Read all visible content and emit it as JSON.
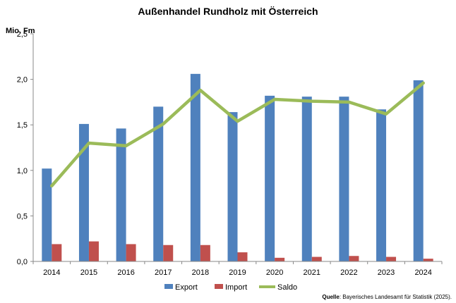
{
  "chart_data": {
    "type": "bar",
    "title": "Außenhandel Rundholz mit Österreich",
    "ylabel": "Mio. Fm",
    "xlabel": "",
    "categories": [
      "2014",
      "2015",
      "2016",
      "2017",
      "2018",
      "2019",
      "2020",
      "2021",
      "2022",
      "2023",
      "2024"
    ],
    "series": [
      {
        "name": "Export",
        "type": "bar",
        "color": "#4f81bd",
        "values": [
          1.02,
          1.51,
          1.46,
          1.7,
          2.06,
          1.64,
          1.82,
          1.81,
          1.81,
          1.67,
          1.99
        ]
      },
      {
        "name": "Import",
        "type": "bar",
        "color": "#c0504d",
        "values": [
          0.19,
          0.22,
          0.19,
          0.18,
          0.18,
          0.1,
          0.04,
          0.05,
          0.06,
          0.05,
          0.03
        ]
      },
      {
        "name": "Saldo",
        "type": "line",
        "color": "#9bbb59",
        "values": [
          0.83,
          1.3,
          1.27,
          1.51,
          1.88,
          1.54,
          1.78,
          1.76,
          1.75,
          1.62,
          1.96
        ]
      }
    ],
    "ylim": [
      0,
      2.5
    ],
    "yticks": [
      "0,0",
      "0,5",
      "1,0",
      "1,5",
      "2,0",
      "2,5"
    ],
    "grid": false,
    "legend_position": "bottom"
  },
  "source": {
    "label": "Quelle",
    "text": ": Bayerisches Landesamt für Statistik (2025)."
  }
}
